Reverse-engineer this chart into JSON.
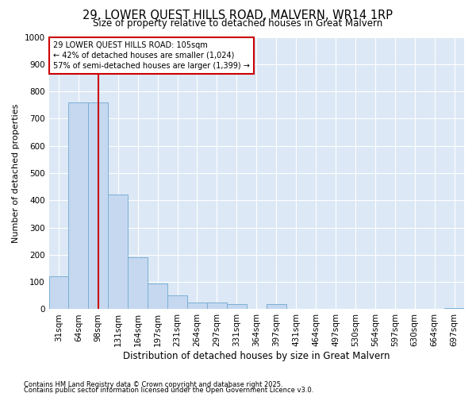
{
  "title_line1": "29, LOWER QUEST HILLS ROAD, MALVERN, WR14 1RP",
  "title_line2": "Size of property relative to detached houses in Great Malvern",
  "xlabel": "Distribution of detached houses by size in Great Malvern",
  "ylabel": "Number of detached properties",
  "bar_color": "#c5d8f0",
  "bar_edge_color": "#7bafd4",
  "bg_color": "#dce8f5",
  "grid_color": "#ffffff",
  "fig_bg_color": "#ffffff",
  "categories": [
    "31sqm",
    "64sqm",
    "98sqm",
    "131sqm",
    "164sqm",
    "197sqm",
    "231sqm",
    "264sqm",
    "297sqm",
    "331sqm",
    "364sqm",
    "397sqm",
    "431sqm",
    "464sqm",
    "497sqm",
    "530sqm",
    "564sqm",
    "597sqm",
    "630sqm",
    "664sqm",
    "697sqm"
  ],
  "values": [
    120,
    760,
    760,
    420,
    190,
    95,
    50,
    25,
    25,
    20,
    0,
    20,
    0,
    0,
    0,
    0,
    0,
    0,
    0,
    0,
    5
  ],
  "ylim": [
    0,
    1000
  ],
  "yticks": [
    0,
    100,
    200,
    300,
    400,
    500,
    600,
    700,
    800,
    900,
    1000
  ],
  "vline_x": 2.0,
  "vline_color": "#cc0000",
  "annotation_line1": "29 LOWER QUEST HILLS ROAD: 105sqm",
  "annotation_line2": "← 42% of detached houses are smaller (1,024)",
  "annotation_line3": "57% of semi-detached houses are larger (1,399) →",
  "annotation_box_color": "#ffffff",
  "annotation_box_edge": "#cc0000",
  "footer1": "Contains HM Land Registry data © Crown copyright and database right 2025.",
  "footer2": "Contains public sector information licensed under the Open Government Licence v3.0.",
  "title_fontsize": 10.5,
  "subtitle_fontsize": 8.5,
  "ylabel_fontsize": 8,
  "xlabel_fontsize": 8.5,
  "tick_fontsize": 7.5,
  "annotation_fontsize": 7,
  "footer_fontsize": 6
}
